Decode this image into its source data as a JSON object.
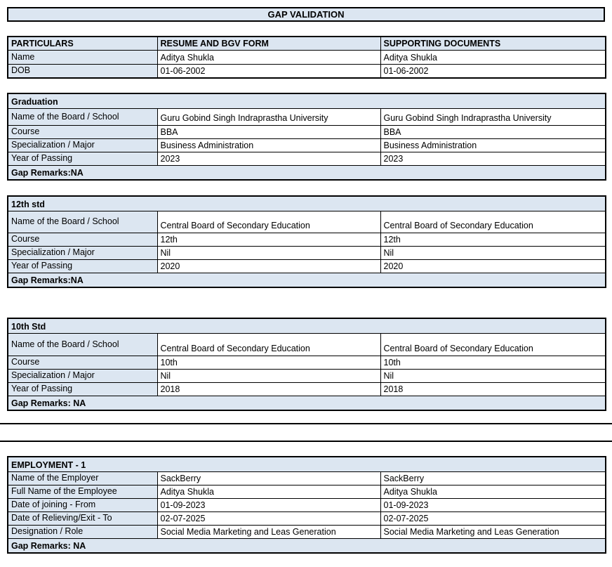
{
  "title": "GAP VALIDATION",
  "colors": {
    "fill": "#dce6f1",
    "border": "#000000",
    "background": "#ffffff"
  },
  "particulars_table": {
    "headers": [
      "PARTICULARS",
      "RESUME AND BGV FORM",
      "SUPPORTING DOCUMENTS"
    ],
    "rows": [
      {
        "label": "Name",
        "resume": "Aditya Shukla",
        "supporting": "Aditya Shukla"
      },
      {
        "label": "DOB",
        "resume": "01-06-2002",
        "supporting": "01-06-2002"
      }
    ]
  },
  "sections": [
    {
      "title": "Graduation",
      "rows": [
        {
          "label": "Name of the Board / School",
          "resume": "Guru Gobind Singh Indraprastha University",
          "supporting": "Guru Gobind Singh Indraprastha University"
        },
        {
          "label": "Course",
          "resume": "BBA",
          "supporting": "BBA"
        },
        {
          "label": "Specialization / Major",
          "resume": "Business Administration",
          "supporting": "Business Administration"
        },
        {
          "label": "Year of Passing",
          "resume": "2023",
          "supporting": "2023"
        }
      ],
      "remarks": "Gap Remarks:NA"
    },
    {
      "title": "12th std",
      "rows": [
        {
          "label": "Name of the Board / School",
          "resume": "Central Board of Secondary Education",
          "supporting": "Central Board of Secondary Education"
        },
        {
          "label": "Course",
          "resume": "12th",
          "supporting": "12th"
        },
        {
          "label": "Specialization / Major",
          "resume": "Nil",
          "supporting": "Nil"
        },
        {
          "label": "Year of Passing",
          "resume": "2020",
          "supporting": "2020"
        }
      ],
      "remarks": "Gap Remarks:NA"
    },
    {
      "title": "10th Std",
      "rows": [
        {
          "label": "Name of the Board / School",
          "resume": "Central Board of Secondary Education",
          "supporting": "Central Board of Secondary Education"
        },
        {
          "label": "Course",
          "resume": "10th",
          "supporting": "10th"
        },
        {
          "label": "Specialization / Major",
          "resume": "Nil",
          "supporting": "Nil"
        },
        {
          "label": "Year of Passing",
          "resume": "2018",
          "supporting": "2018"
        }
      ],
      "remarks": "Gap Remarks: NA"
    },
    {
      "title": "EMPLOYMENT - 1",
      "rows": [
        {
          "label": "Name of the Employer",
          "resume": "SackBerry",
          "supporting": "SackBerry"
        },
        {
          "label": "Full Name of the Employee",
          "resume": "Aditya Shukla",
          "supporting": "Aditya Shukla"
        },
        {
          "label": "Date of joining - From",
          "resume": "01-09-2023",
          "supporting": "01-09-2023"
        },
        {
          "label": "Date of Relieving/Exit - To",
          "resume": "02-07-2025",
          "supporting": "02-07-2025"
        },
        {
          "label": "Designation / Role",
          "resume": "Social Media Marketing and Leas Generation",
          "supporting": "Social Media Marketing and Leas Generation"
        }
      ],
      "remarks": "Gap Remarks: NA"
    }
  ]
}
